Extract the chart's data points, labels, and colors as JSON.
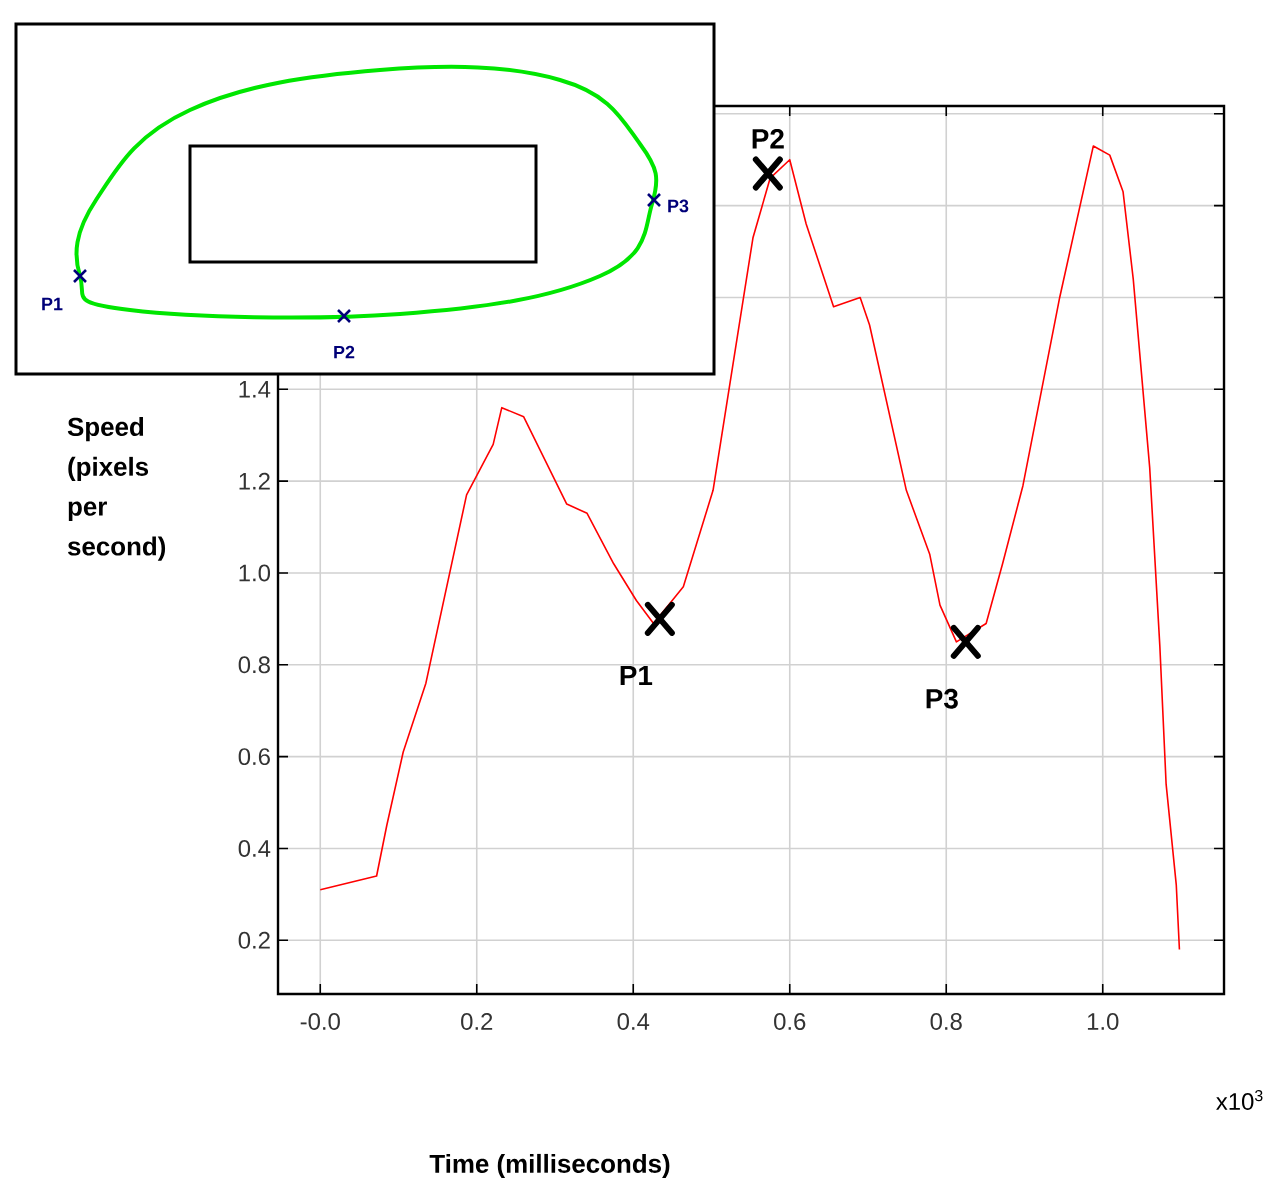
{
  "chart_data": {
    "type": "line",
    "xlabel": "Time (milliseconds)",
    "ylabel": "Speed (pixels per second)",
    "x": [
      0,
      0.072,
      0.085,
      0.106,
      0.135,
      0.187,
      0.221,
      0.232,
      0.26,
      0.315,
      0.341,
      0.375,
      0.404,
      0.426,
      0.464,
      0.502,
      0.553,
      0.575,
      0.6,
      0.621,
      0.656,
      0.69,
      0.702,
      0.749,
      0.779,
      0.792,
      0.813,
      0.851,
      0.872,
      0.898,
      0.945,
      0.988,
      1.009,
      1.026,
      1.039,
      1.06,
      1.073,
      1.081,
      1.094,
      1.098
    ],
    "series": [
      {
        "color": "#ff0000",
        "values": [
          0.31,
          0.34,
          0.45,
          0.61,
          0.76,
          1.17,
          1.28,
          1.36,
          1.34,
          1.15,
          1.13,
          1.02,
          0.94,
          0.89,
          0.97,
          1.18,
          1.73,
          1.86,
          1.9,
          1.76,
          1.58,
          1.6,
          1.54,
          1.18,
          1.04,
          0.93,
          0.85,
          0.89,
          1.02,
          1.19,
          1.6,
          1.93,
          1.91,
          1.83,
          1.64,
          1.23,
          0.84,
          0.54,
          0.32,
          0.18
        ]
      }
    ],
    "xlim": [
      -0.054,
      1.155
    ],
    "ylim": [
      0.083,
      2.017
    ],
    "xticks": [
      {
        "value": 0,
        "label": "-0.0"
      },
      0.2,
      0.4,
      0.6,
      0.8,
      {
        "value": 1.0,
        "label": "1.0"
      }
    ],
    "yticks": [
      0.2,
      0.4,
      0.6,
      0.8,
      {
        "value": 1.0,
        "label": "1.0"
      },
      1.2,
      1.4,
      {
        "value": 1.6,
        "label": null
      },
      {
        "value": 1.8,
        "label": null
      },
      {
        "value": 2.0,
        "label": null
      }
    ],
    "grid": true,
    "marker": "none",
    "line_style": "solid",
    "annotations": [
      {
        "text": "P1",
        "x": 0.434,
        "y": 0.9
      },
      {
        "text": "P2",
        "x": 0.572,
        "y": 1.87
      },
      {
        "text": "P3",
        "x": 0.825,
        "y": 0.85
      },
      "x10$^{3}$",
      "P1",
      "P2",
      "P3"
    ]
  }
}
